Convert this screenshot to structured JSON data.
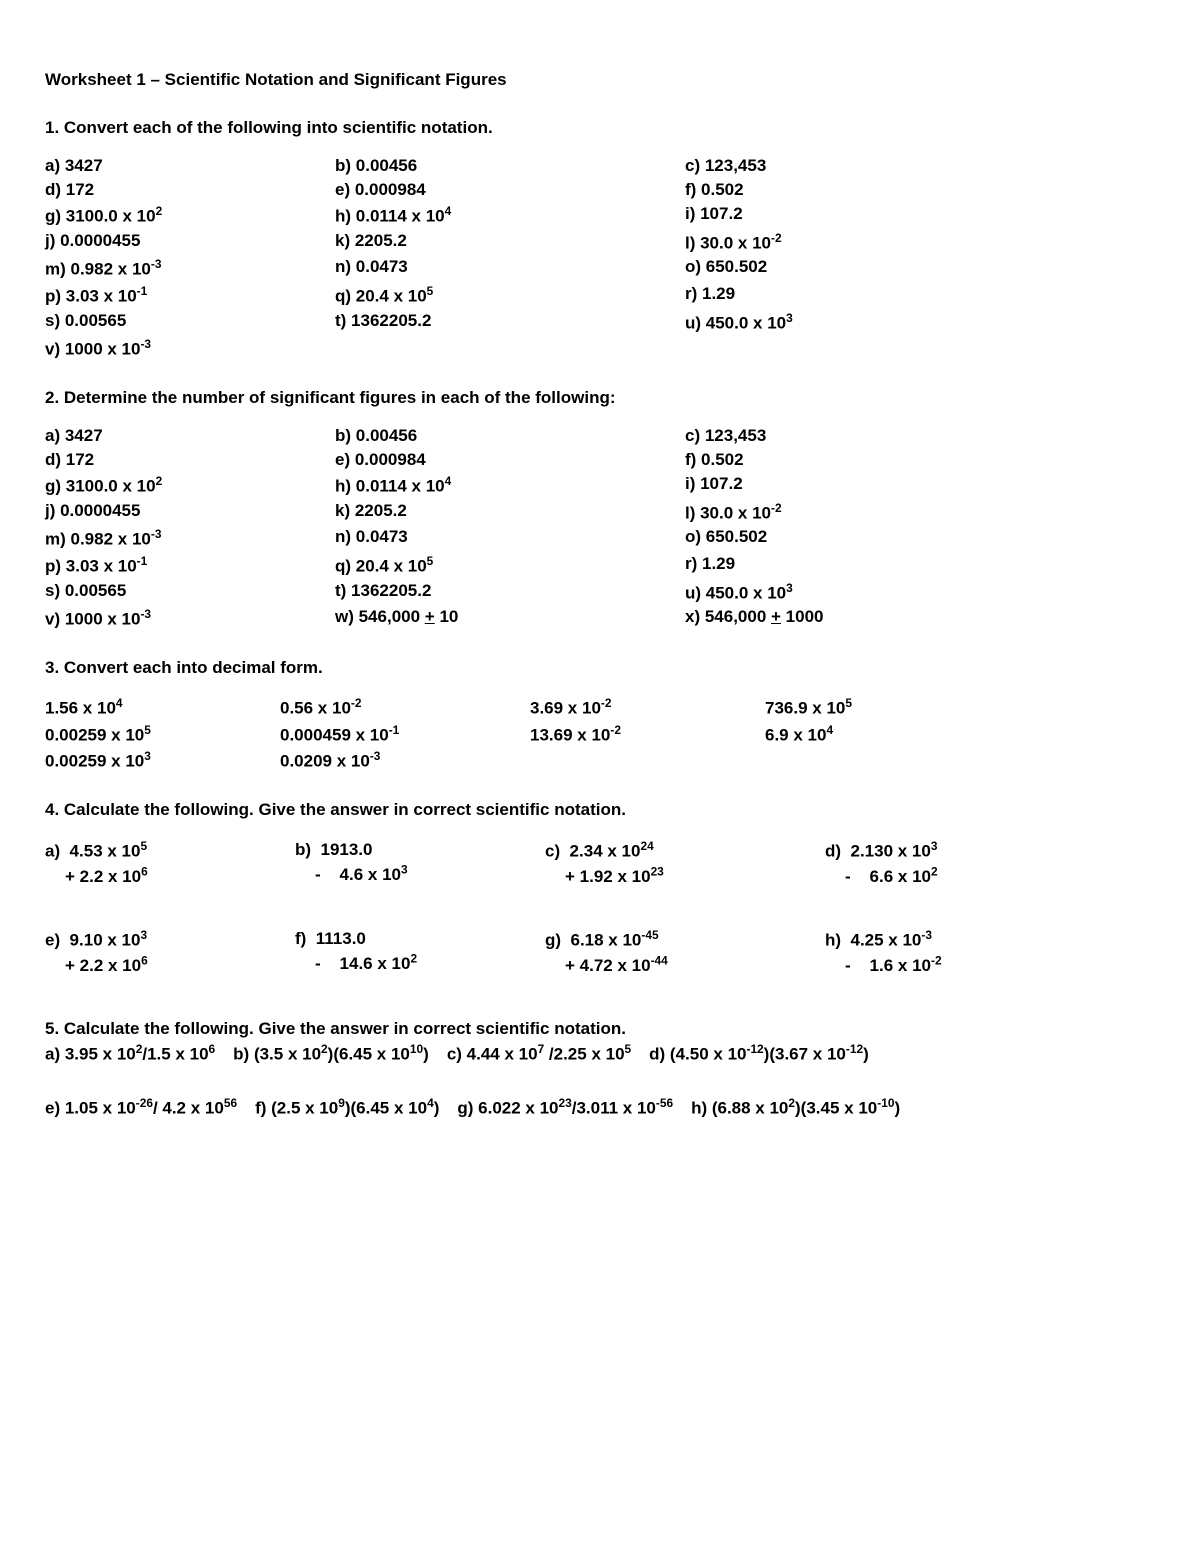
{
  "title": "Worksheet 1 – Scientific Notation and Significant Figures",
  "q1": {
    "head": "1. Convert each of the following into scientific notation.",
    "items": [
      {
        "l": "a)",
        "v": "3427"
      },
      {
        "l": "b)",
        "v": "0.00456"
      },
      {
        "l": "c)",
        "v": "123,453"
      },
      {
        "l": "d)",
        "v": "172"
      },
      {
        "l": "e)",
        "v": "0.000984"
      },
      {
        "l": "f)",
        "v": "0.502"
      },
      {
        "l": "g)",
        "v": "3100.0 x 10",
        "e": "2"
      },
      {
        "l": "h)",
        "v": "0.0114 x 10",
        "e": "4"
      },
      {
        "l": "i)",
        "v": "107.2"
      },
      {
        "l": "j)",
        "v": "0.0000455"
      },
      {
        "l": "k)",
        "v": "2205.2"
      },
      {
        "l": "l)",
        "v": "30.0 x 10",
        "e": "-2"
      },
      {
        "l": "m)",
        "v": "0.982 x 10",
        "e": "-3"
      },
      {
        "l": "n)",
        "v": "0.0473"
      },
      {
        "l": "o)",
        "v": "650.502"
      },
      {
        "l": "p)",
        "v": "3.03 x 10",
        "e": "-1"
      },
      {
        "l": "q)",
        "v": "20.4 x 10",
        "e": "5"
      },
      {
        "l": "r)",
        "v": "1.29"
      },
      {
        "l": "s)",
        "v": "0.00565"
      },
      {
        "l": "t)",
        "v": "1362205.2"
      },
      {
        "l": "u)",
        "v": "450.0 x 10",
        "e": "3"
      },
      {
        "l": "v)",
        "v": "1000 x 10",
        "e": "-3"
      }
    ]
  },
  "q2": {
    "head": "2. Determine the number of significant figures in each of the following:",
    "items": [
      {
        "l": "a)",
        "v": "3427"
      },
      {
        "l": "b)",
        "v": "0.00456"
      },
      {
        "l": "c)",
        "v": "123,453"
      },
      {
        "l": "d)",
        "v": "172"
      },
      {
        "l": "e)",
        "v": "0.000984"
      },
      {
        "l": "f)",
        "v": "0.502"
      },
      {
        "l": "g)",
        "v": "3100.0 x 10",
        "e": "2"
      },
      {
        "l": "h)",
        "v": "0.0114 x 10",
        "e": "4"
      },
      {
        "l": "i)",
        "v": "107.2"
      },
      {
        "l": "j)",
        "v": "0.0000455"
      },
      {
        "l": "k)",
        "v": "2205.2"
      },
      {
        "l": "l)",
        "v": "30.0 x 10",
        "e": "-2"
      },
      {
        "l": "m)",
        "v": "0.982 x 10",
        "e": "-3"
      },
      {
        "l": "n)",
        "v": "0.0473"
      },
      {
        "l": "o)",
        "v": "650.502"
      },
      {
        "l": "p)",
        "v": "3.03 x 10",
        "e": "-1"
      },
      {
        "l": "q)",
        "v": "20.4 x 10",
        "e": "5"
      },
      {
        "l": "r)",
        "v": "1.29"
      },
      {
        "l": "s)",
        "v": "0.00565"
      },
      {
        "l": "t)",
        "v": "1362205.2"
      },
      {
        "l": "u)",
        "v": "450.0 x 10",
        "e": "3"
      },
      {
        "l": "v)",
        "v": "1000 x 10",
        "e": "-3"
      },
      {
        "l": "w)",
        "v": "546,000 ",
        "pm": "+",
        "tail": " 10"
      },
      {
        "l": "x)",
        "v": "546,000 ",
        "pm": "+",
        "tail": " 1000"
      }
    ]
  },
  "q3": {
    "head": "3. Convert each into decimal form.",
    "items": [
      {
        "v": "1.56 x 10",
        "e": "4"
      },
      {
        "v": "0.56 x 10",
        "e": "-2"
      },
      {
        "v": "3.69 x 10",
        "e": "-2"
      },
      {
        "v": "736.9 x 10",
        "e": "5"
      },
      {
        "v": "0.00259 x 10",
        "e": "5"
      },
      {
        "v": "0.000459 x 10",
        "e": "-1"
      },
      {
        "v": "13.69 x 10",
        "e": "-2"
      },
      {
        "v": "6.9 x 10",
        "e": "4"
      },
      {
        "v": "0.00259 x 10",
        "e": "3"
      },
      {
        "v": "0.0209 x 10",
        "e": "-3"
      }
    ]
  },
  "q4": {
    "head": "4. Calculate the following.  Give the answer in correct scientific notation.",
    "row1": [
      {
        "l": "a)",
        "a": "4.53 x 10",
        "ae": "5",
        "op": "+",
        "b": "2.2 x 10",
        "be": "6"
      },
      {
        "l": "b)",
        "a": "1913.0",
        "op": "-",
        "b": "4.6 x 10",
        "be": "3",
        "indent": true
      },
      {
        "l": "c)",
        "a": "2.34 x 10",
        "ae": "24",
        "op": "+",
        "b": "1.92 x 10",
        "be": "23"
      },
      {
        "l": "d)",
        "a": "2.130 x 10",
        "ae": "3",
        "op": "-",
        "b": "6.6 x 10",
        "be": "2",
        "indent": true
      }
    ],
    "row2": [
      {
        "l": "e)",
        "a": "9.10 x 10",
        "ae": "3",
        "op": "+",
        "b": "2.2 x 10",
        "be": "6"
      },
      {
        "l": "f)",
        "a": "1113.0",
        "op": "-",
        "b": "14.6 x 10",
        "be": "2",
        "indent": true
      },
      {
        "l": "g)",
        "a": "6.18 x 10",
        "ae": "-45",
        "op": "+",
        "b": "4.72 x 10",
        "be": "-44"
      },
      {
        "l": "h)",
        "a": "4.25 x 10",
        "ae": "-3",
        "op": "-",
        "b": "1.6 x 10",
        "be": "-2",
        "indent": true
      }
    ]
  },
  "q5": {
    "head": "5. Calculate the following.  Give the answer in correct scientific notation.",
    "row1": [
      {
        "l": "a)",
        "t": "3.95 x 10<sup>2</sup>/1.5 x 10<sup>6</sup>"
      },
      {
        "l": "b)",
        "t": "(3.5 x 10<sup>2</sup>)(6.45 x 10<sup>10</sup>)"
      },
      {
        "l": "c)",
        "t": "4.44 x 10<sup>7</sup> /2.25 x 10<sup>5</sup>"
      },
      {
        "l": "d)",
        "t": "(4.50 x 10<sup>-12</sup>)(3.67 x 10<sup>-12</sup>)"
      }
    ],
    "row2": [
      {
        "l": "e)",
        "t": "1.05 x 10<sup>-26</sup>/ 4.2 x 10<sup>56</sup>"
      },
      {
        "l": "f)",
        "t": "(2.5 x 10<sup>9</sup>)(6.45 x 10<sup>4</sup>)"
      },
      {
        "l": "g)",
        "t": "6.022 x 10<sup>23</sup>/3.011 x 10<sup>-56</sup>"
      },
      {
        "l": "h)",
        "t": "(6.88 x 10<sup>2</sup>)(3.45 x 10<sup>-10</sup>)"
      }
    ]
  }
}
